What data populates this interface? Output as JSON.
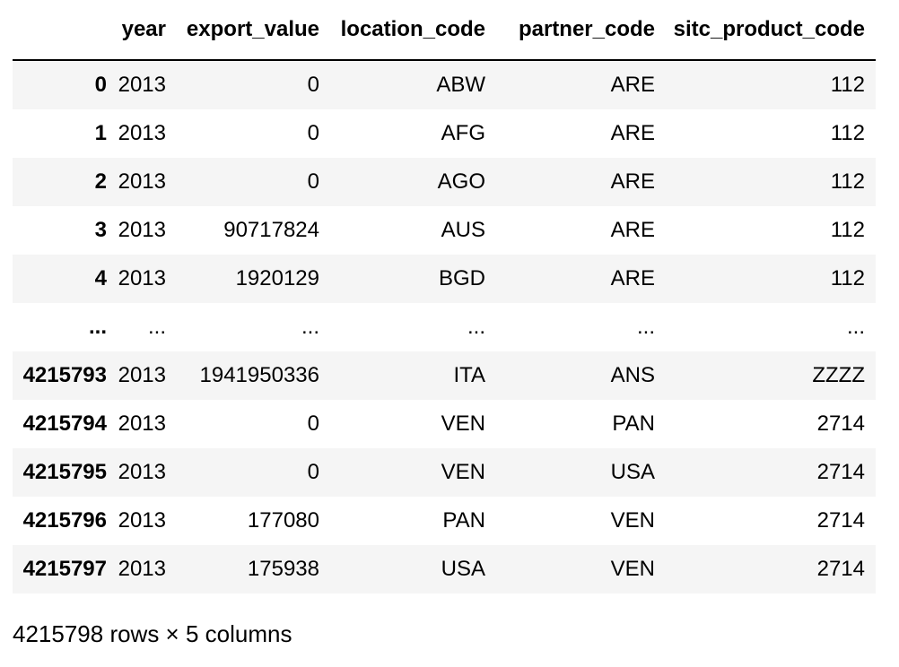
{
  "table": {
    "index_header": "",
    "columns": [
      "year",
      "export_value",
      "location_code",
      "partner_code",
      "sitc_product_code"
    ],
    "rows": [
      {
        "index": "0",
        "year": "2013",
        "export_value": "0",
        "location_code": "ABW",
        "partner_code": "ARE",
        "sitc_product_code": "112"
      },
      {
        "index": "1",
        "year": "2013",
        "export_value": "0",
        "location_code": "AFG",
        "partner_code": "ARE",
        "sitc_product_code": "112"
      },
      {
        "index": "2",
        "year": "2013",
        "export_value": "0",
        "location_code": "AGO",
        "partner_code": "ARE",
        "sitc_product_code": "112"
      },
      {
        "index": "3",
        "year": "2013",
        "export_value": "90717824",
        "location_code": "AUS",
        "partner_code": "ARE",
        "sitc_product_code": "112"
      },
      {
        "index": "4",
        "year": "2013",
        "export_value": "1920129",
        "location_code": "BGD",
        "partner_code": "ARE",
        "sitc_product_code": "112"
      },
      {
        "index": "...",
        "year": "...",
        "export_value": "...",
        "location_code": "...",
        "partner_code": "...",
        "sitc_product_code": "..."
      },
      {
        "index": "4215793",
        "year": "2013",
        "export_value": "1941950336",
        "location_code": "ITA",
        "partner_code": "ANS",
        "sitc_product_code": "ZZZZ"
      },
      {
        "index": "4215794",
        "year": "2013",
        "export_value": "0",
        "location_code": "VEN",
        "partner_code": "PAN",
        "sitc_product_code": "2714"
      },
      {
        "index": "4215795",
        "year": "2013",
        "export_value": "0",
        "location_code": "VEN",
        "partner_code": "USA",
        "sitc_product_code": "2714"
      },
      {
        "index": "4215796",
        "year": "2013",
        "export_value": "177080",
        "location_code": "PAN",
        "partner_code": "VEN",
        "sitc_product_code": "2714"
      },
      {
        "index": "4215797",
        "year": "2013",
        "export_value": "175938",
        "location_code": "USA",
        "partner_code": "VEN",
        "sitc_product_code": "2714"
      }
    ]
  },
  "footer": {
    "shape_text": "4215798 rows × 5 columns"
  }
}
